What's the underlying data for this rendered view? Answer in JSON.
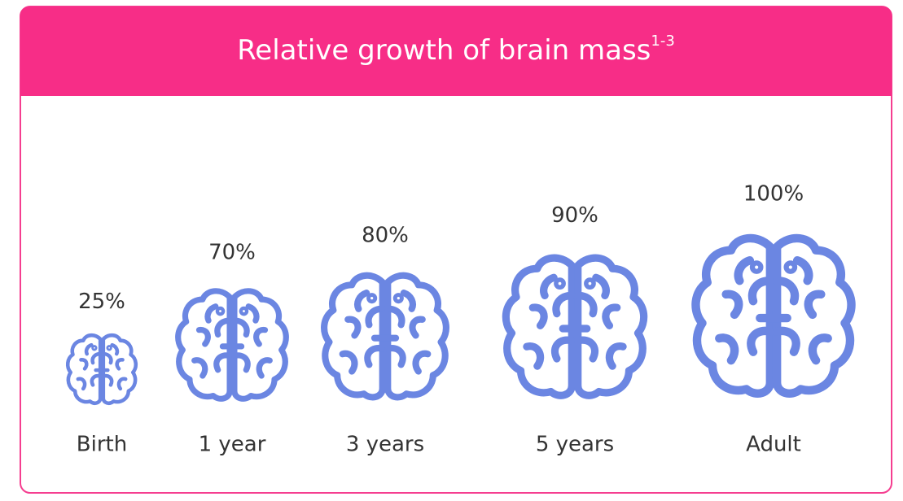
{
  "chart_data": {
    "type": "pictograph",
    "title": "Relative growth of brain mass",
    "title_superscript": "1-3",
    "categories": [
      "Birth",
      "1 year",
      "3 years",
      "5 years",
      "Adult"
    ],
    "values": [
      25,
      70,
      80,
      90,
      100
    ],
    "value_labels": [
      "25%",
      "70%",
      "80%",
      "90%",
      "100%"
    ],
    "color": "#6b86e2"
  }
}
